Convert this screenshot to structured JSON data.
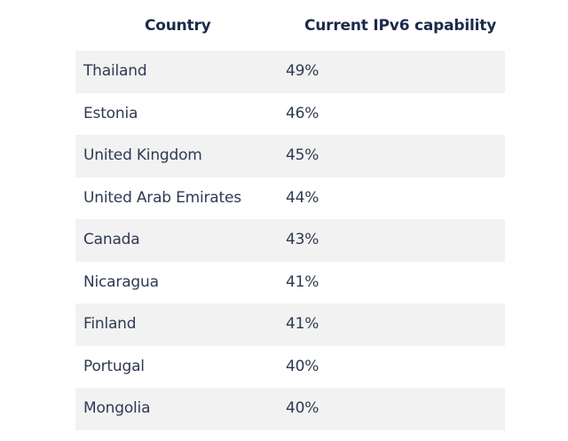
{
  "table": {
    "headers": {
      "country": "Country",
      "capability": "Current IPv6 capability"
    },
    "rows": [
      {
        "country": "Thailand",
        "value": "49%"
      },
      {
        "country": "Estonia",
        "value": "46%"
      },
      {
        "country": "United Kingdom",
        "value": "45%"
      },
      {
        "country": "United Arab Emirates",
        "value": "44%"
      },
      {
        "country": "Canada",
        "value": "43%"
      },
      {
        "country": "Nicaragua",
        "value": "41%"
      },
      {
        "country": "Finland",
        "value": "41%"
      },
      {
        "country": "Portugal",
        "value": "40%"
      },
      {
        "country": "Mongolia",
        "value": "40%"
      }
    ]
  }
}
